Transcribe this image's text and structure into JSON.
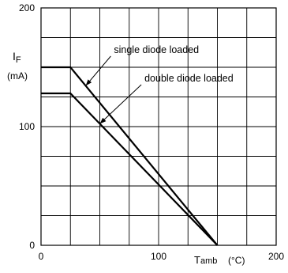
{
  "chart_data": {
    "type": "line",
    "title": "",
    "ylabel_main": "I",
    "ylabel_sub": "F",
    "ylabel_unit": "(mA)",
    "xlabel_main": "T",
    "xlabel_sub": "amb",
    "xlabel_unit": "(°C)",
    "xlim": [
      0,
      200
    ],
    "ylim": [
      0,
      200
    ],
    "x_ticks": [
      "0",
      "100",
      "200"
    ],
    "y_ticks": [
      "0",
      "100",
      "200"
    ],
    "grid": true,
    "grid_step_x": 25,
    "grid_step_y": 25,
    "series": [
      {
        "name": "single diode loaded",
        "x": [
          0,
          25,
          150
        ],
        "y": [
          150,
          150,
          0
        ]
      },
      {
        "name": "double diode loaded",
        "x": [
          0,
          25,
          150
        ],
        "y": [
          128,
          128,
          0
        ]
      }
    ],
    "annotations": [
      {
        "text": "single diode loaded",
        "series_index": 0,
        "point_x": 38,
        "label_x": 62,
        "label_y": 162
      },
      {
        "text": "double diode loaded",
        "series_index": 1,
        "point_x": 50,
        "label_x": 88,
        "label_y": 138
      }
    ]
  }
}
